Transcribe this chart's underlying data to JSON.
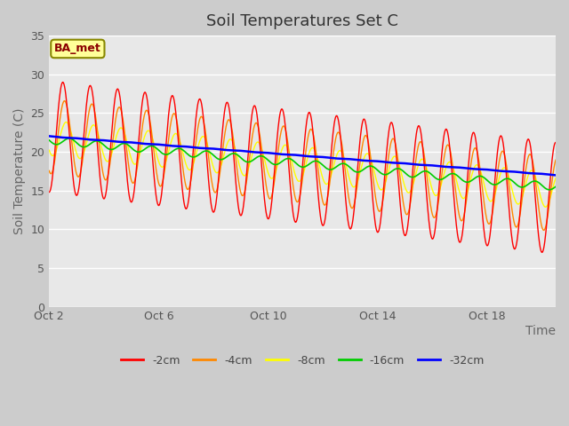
{
  "title": "Soil Temperatures Set C",
  "xlabel": "Time",
  "ylabel": "Soil Temperature (C)",
  "annotation": "BA_met",
  "ylim": [
    0,
    35
  ],
  "yticks": [
    0,
    5,
    10,
    15,
    20,
    25,
    30,
    35
  ],
  "xlim_days": [
    0,
    18.5
  ],
  "x_tick_labels": [
    "Oct 2",
    "Oct 6",
    "Oct 10",
    "Oct 14",
    "Oct 18"
  ],
  "x_tick_positions": [
    0,
    4,
    8,
    12,
    16
  ],
  "legend_entries": [
    "-2cm",
    "-4cm",
    "-8cm",
    "-16cm",
    "-32cm"
  ],
  "line_colors": [
    "#ff0000",
    "#ff8800",
    "#ffff00",
    "#00cc00",
    "#0000ff"
  ],
  "title_fontsize": 13,
  "label_fontsize": 10,
  "tick_fontsize": 9,
  "legend_fontsize": 9,
  "num_days": 18.5,
  "num_points": 888
}
